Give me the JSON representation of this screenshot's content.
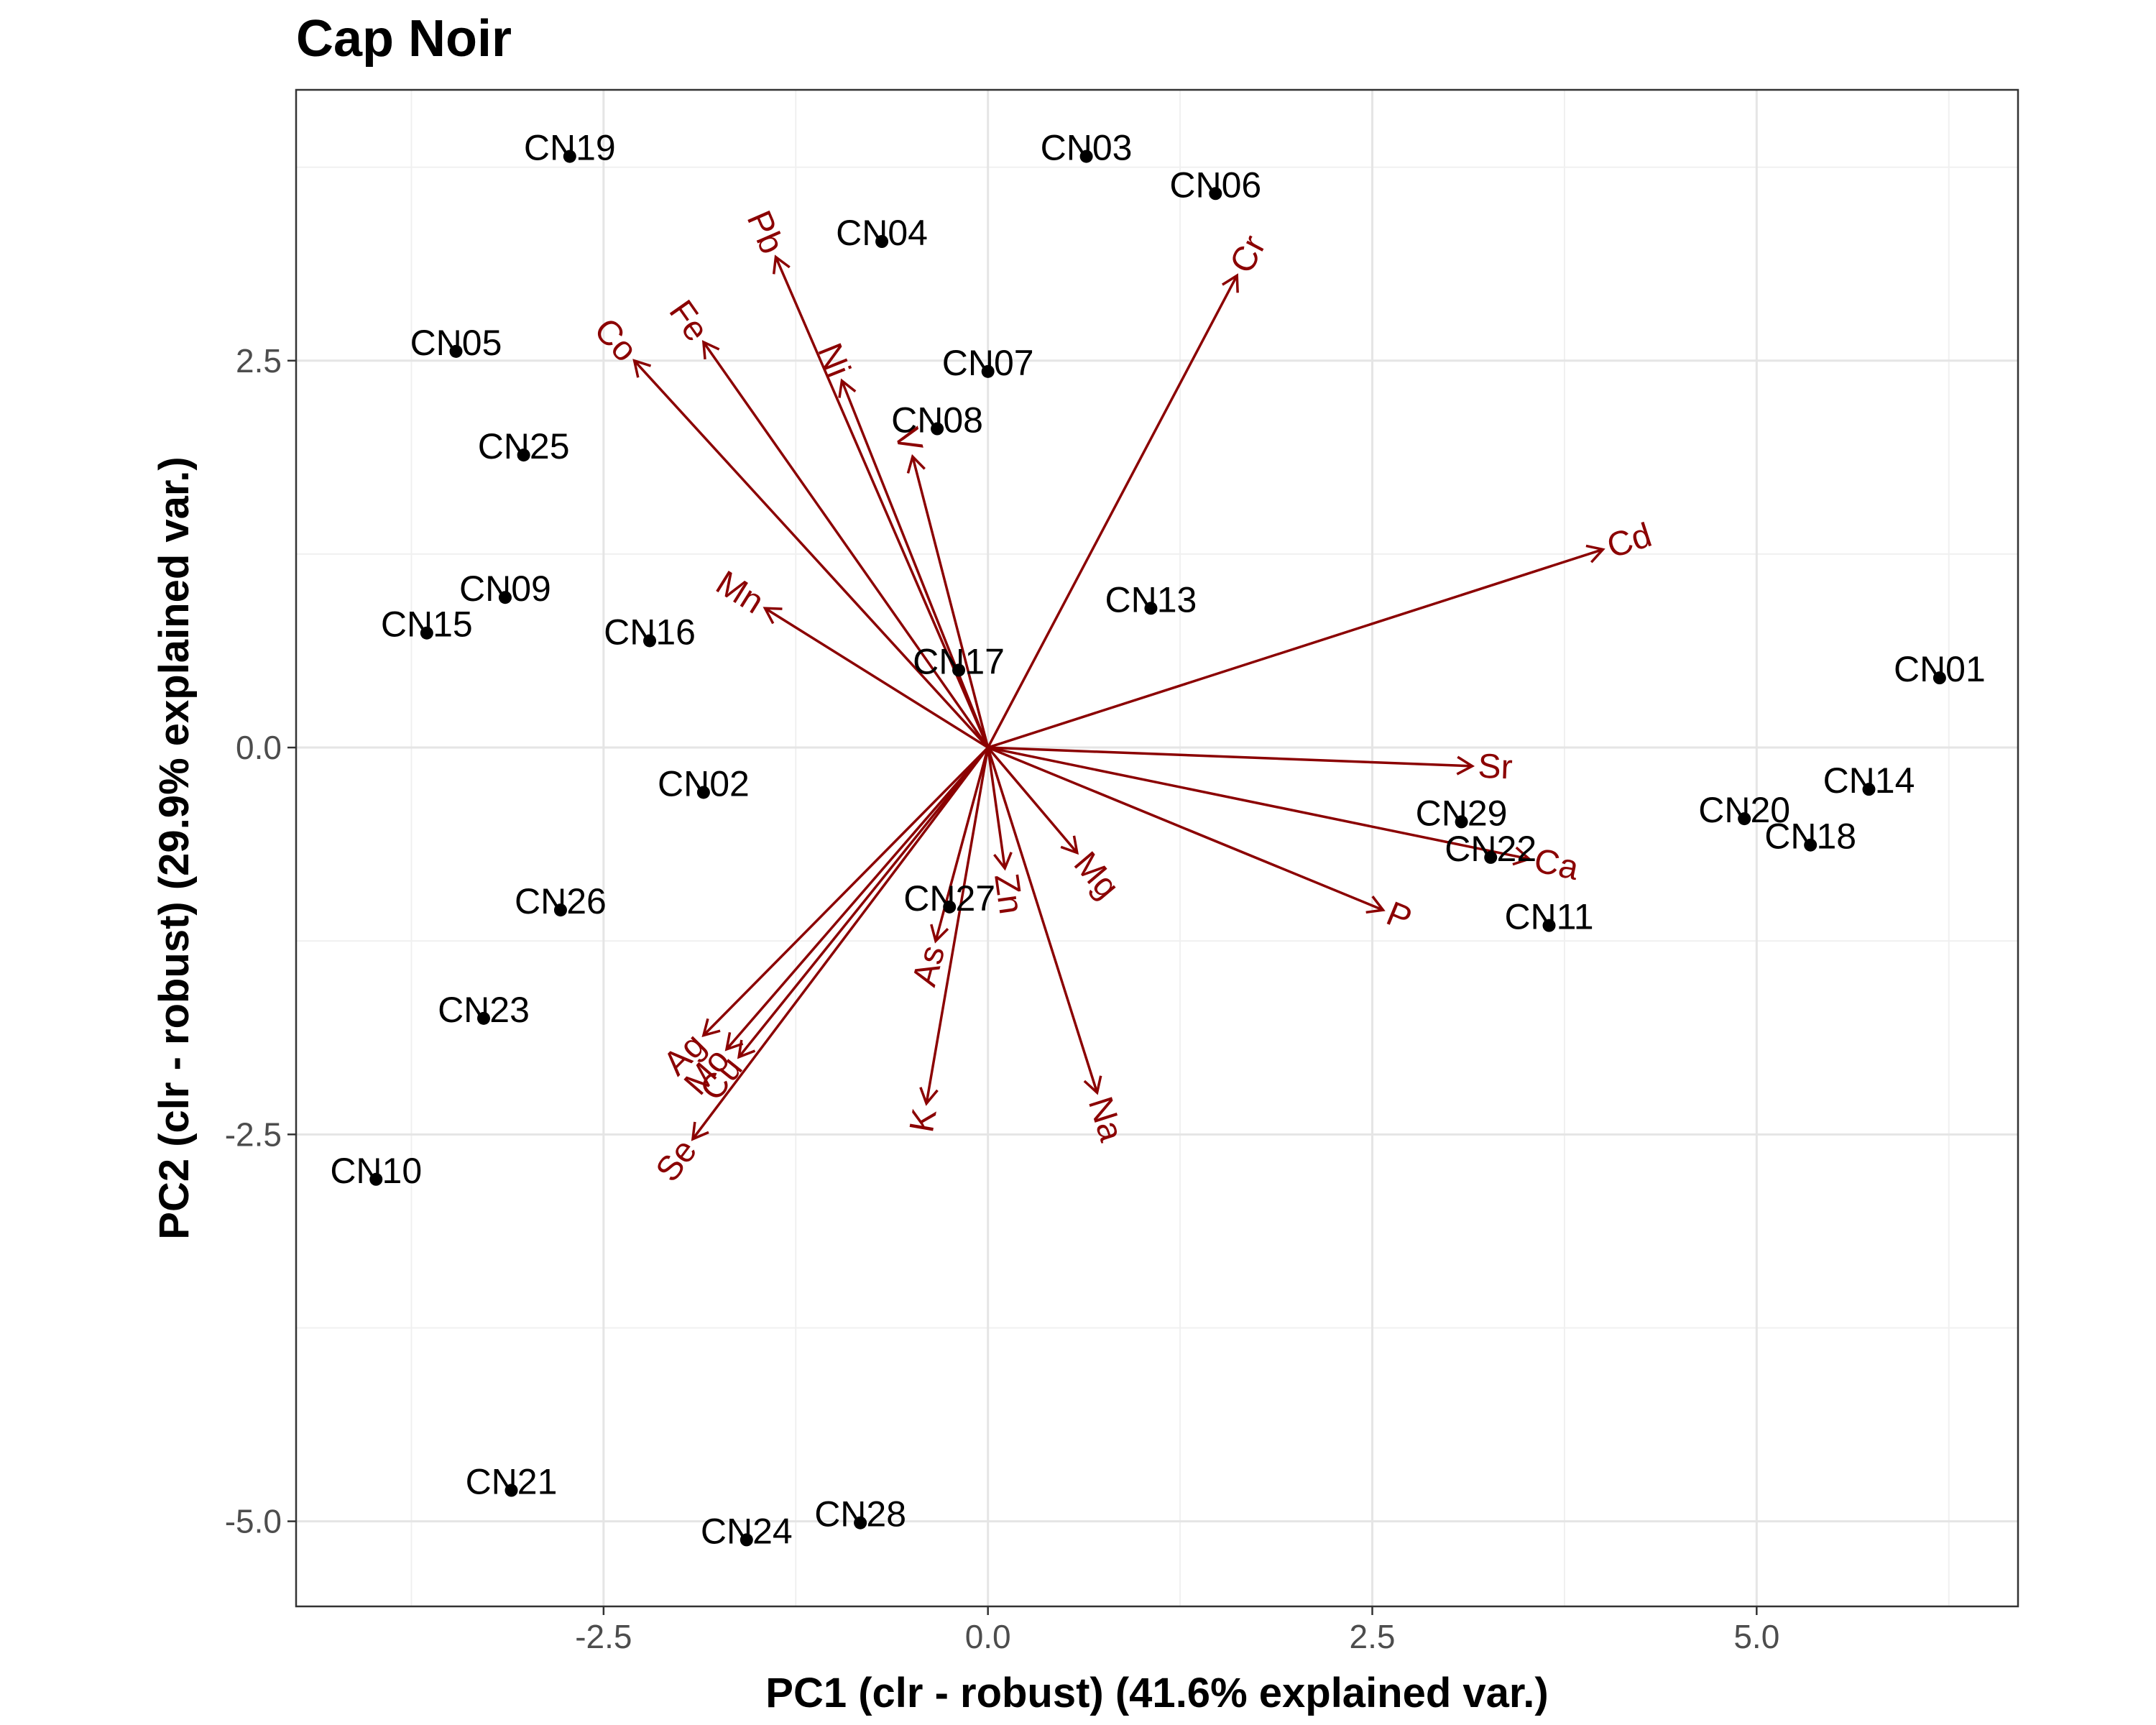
{
  "chart_data": {
    "type": "scatter",
    "subtype": "pca-biplot",
    "title": "Cap Noir",
    "xlabel": "PC1 (clr - robust) (41.6% explained var.)",
    "ylabel": "PC2 (clr - robust) (29.9% explained var.)",
    "xlim": [
      -4.5,
      6.7
    ],
    "ylim": [
      -5.55,
      4.25
    ],
    "x_ticks": [
      -2.5,
      0.0,
      2.5,
      5.0
    ],
    "x_tick_labels": [
      "-2.5",
      "0.0",
      "2.5",
      "5.0"
    ],
    "y_ticks": [
      -5.0,
      -2.5,
      0.0,
      2.5
    ],
    "y_tick_labels": [
      "-5.0",
      "-2.5",
      "0.0",
      "2.5"
    ],
    "grid": true,
    "legend": "none",
    "point_color": "#000000",
    "loading_color": "#8b0000",
    "points": [
      {
        "label": "CN19",
        "x": -2.72,
        "y": 3.82
      },
      {
        "label": "CN03",
        "x": 0.64,
        "y": 3.82
      },
      {
        "label": "CN06",
        "x": 1.48,
        "y": 3.58
      },
      {
        "label": "CN04",
        "x": -0.69,
        "y": 3.27
      },
      {
        "label": "CN05",
        "x": -3.46,
        "y": 2.56
      },
      {
        "label": "CN07",
        "x": 0.0,
        "y": 2.43
      },
      {
        "label": "CN08",
        "x": -0.33,
        "y": 2.06
      },
      {
        "label": "CN25",
        "x": -3.02,
        "y": 1.89
      },
      {
        "label": "CN09",
        "x": -3.14,
        "y": 0.97
      },
      {
        "label": "CN15",
        "x": -3.65,
        "y": 0.74
      },
      {
        "label": "CN16",
        "x": -2.2,
        "y": 0.69
      },
      {
        "label": "CN13",
        "x": 1.06,
        "y": 0.9
      },
      {
        "label": "CN17",
        "x": -0.19,
        "y": 0.5
      },
      {
        "label": "CN01",
        "x": 6.19,
        "y": 0.45
      },
      {
        "label": "CN02",
        "x": -1.85,
        "y": -0.29
      },
      {
        "label": "CN14",
        "x": 5.73,
        "y": -0.27
      },
      {
        "label": "CN20",
        "x": 4.92,
        "y": -0.46
      },
      {
        "label": "CN18",
        "x": 5.35,
        "y": -0.63
      },
      {
        "label": "CN29",
        "x": 3.08,
        "y": -0.48
      },
      {
        "label": "CN22",
        "x": 3.27,
        "y": -0.71
      },
      {
        "label": "CN11",
        "x": 3.65,
        "y": -1.15
      },
      {
        "label": "CN26",
        "x": -2.78,
        "y": -1.05
      },
      {
        "label": "CN27",
        "x": -0.25,
        "y": -1.03
      },
      {
        "label": "CN23",
        "x": -3.28,
        "y": -1.75
      },
      {
        "label": "CN10",
        "x": -3.98,
        "y": -2.79
      },
      {
        "label": "CN21",
        "x": -3.1,
        "y": -4.8
      },
      {
        "label": "CN24",
        "x": -1.57,
        "y": -5.12
      },
      {
        "label": "CN28",
        "x": -0.83,
        "y": -5.01
      }
    ],
    "loadings": [
      {
        "label": "Pb",
        "x": -1.38,
        "y": 3.17
      },
      {
        "label": "Fe",
        "x": -1.85,
        "y": 2.62
      },
      {
        "label": "Co",
        "x": -2.3,
        "y": 2.5
      },
      {
        "label": "Ni",
        "x": -0.95,
        "y": 2.37
      },
      {
        "label": "V",
        "x": -0.49,
        "y": 1.88
      },
      {
        "label": "Cr",
        "x": 1.62,
        "y": 3.05
      },
      {
        "label": "Cd",
        "x": 4.0,
        "y": 1.28
      },
      {
        "label": "Mn",
        "x": -1.45,
        "y": 0.9
      },
      {
        "label": "Sr",
        "x": 3.15,
        "y": -0.12
      },
      {
        "label": "Ca",
        "x": 3.52,
        "y": -0.72
      },
      {
        "label": "P",
        "x": 2.57,
        "y": -1.05
      },
      {
        "label": "Mg",
        "x": 0.58,
        "y": -0.68
      },
      {
        "label": "Zn",
        "x": 0.11,
        "y": -0.78
      },
      {
        "label": "As",
        "x": -0.34,
        "y": -1.25
      },
      {
        "label": "K",
        "x": -0.4,
        "y": -2.3
      },
      {
        "label": "Na",
        "x": 0.71,
        "y": -2.23
      },
      {
        "label": "Ag",
        "x": -1.85,
        "y": -1.86
      },
      {
        "label": "Cu",
        "x": -1.62,
        "y": -2.0
      },
      {
        "label": "Mo",
        "x": -1.7,
        "y": -1.95
      },
      {
        "label": "Se",
        "x": -1.92,
        "y": -2.53
      }
    ]
  }
}
